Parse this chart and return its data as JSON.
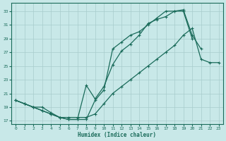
{
  "bg_color": "#c8e8e8",
  "grid_color": "#a8cccc",
  "line_color": "#1a6b5a",
  "xlabel": "Humidex (Indice chaleur)",
  "xlim": [
    -0.5,
    23.5
  ],
  "ylim": [
    16.5,
    34.2
  ],
  "xticks": [
    0,
    1,
    2,
    3,
    4,
    5,
    6,
    7,
    8,
    9,
    10,
    11,
    12,
    13,
    14,
    15,
    16,
    17,
    18,
    19,
    20,
    21,
    22,
    23
  ],
  "yticks": [
    17,
    19,
    21,
    23,
    25,
    27,
    29,
    31,
    33
  ],
  "line1_x": [
    0,
    1,
    2,
    3,
    4,
    5,
    6,
    7,
    8,
    9,
    10,
    11,
    12,
    13,
    14,
    15,
    16,
    17,
    18,
    19,
    20
  ],
  "line1_y": [
    20.0,
    19.5,
    19.0,
    18.5,
    18.0,
    17.5,
    17.2,
    17.2,
    17.2,
    20.0,
    21.5,
    27.5,
    28.5,
    29.5,
    30.0,
    31.0,
    32.0,
    33.0,
    33.0,
    33.0,
    29.0
  ],
  "line2_x": [
    0,
    1,
    2,
    3,
    4,
    5,
    6,
    7,
    8,
    9,
    10,
    11,
    12,
    13,
    14,
    15,
    16,
    17,
    18,
    19,
    20,
    21
  ],
  "line2_y": [
    20.0,
    19.5,
    19.0,
    19.0,
    18.2,
    17.5,
    17.2,
    17.2,
    22.2,
    20.2,
    22.0,
    25.2,
    27.2,
    28.2,
    29.5,
    31.2,
    31.8,
    32.2,
    33.0,
    33.2,
    29.5,
    27.5
  ],
  "line3_x": [
    0,
    1,
    2,
    3,
    4,
    5,
    6,
    7,
    8,
    9,
    10,
    11,
    12,
    13,
    14,
    15,
    16,
    17,
    18,
    19,
    20,
    21,
    22,
    23
  ],
  "line3_y": [
    20.0,
    19.5,
    19.0,
    18.5,
    18.0,
    17.5,
    17.5,
    17.5,
    17.5,
    18.0,
    19.5,
    21.0,
    22.0,
    23.0,
    24.0,
    25.0,
    26.0,
    27.0,
    28.0,
    29.5,
    30.5,
    26.0,
    25.5,
    25.5
  ]
}
